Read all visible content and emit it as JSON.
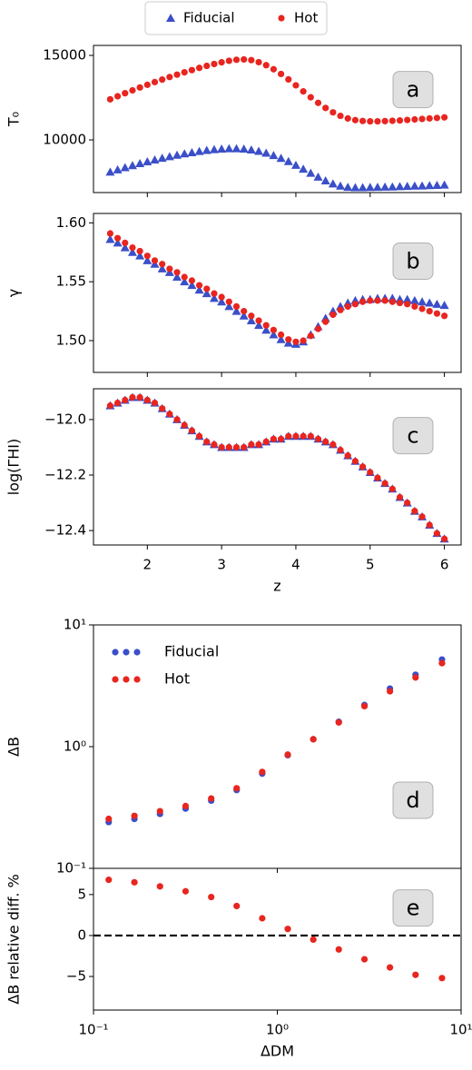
{
  "chart_data": [
    {
      "type": "scatter",
      "ylabel": "T₀",
      "annotation": "a",
      "legend": "upper center outside",
      "sharex": true,
      "x": [
        1.5,
        1.6,
        1.7,
        1.8,
        1.9,
        2.0,
        2.1,
        2.2,
        2.3,
        2.4,
        2.5,
        2.6,
        2.7,
        2.8,
        2.9,
        3.0,
        3.1,
        3.2,
        3.3,
        3.4,
        3.5,
        3.6,
        3.7,
        3.8,
        3.9,
        4.0,
        4.1,
        4.2,
        4.3,
        4.4,
        4.5,
        4.6,
        4.7,
        4.8,
        4.9,
        5.0,
        5.1,
        5.2,
        5.3,
        5.4,
        5.5,
        5.6,
        5.7,
        5.8,
        5.9,
        6.0
      ],
      "xlim": [
        1.275,
        6.225
      ],
      "ylim": [
        6882,
        15591
      ],
      "yticks": [
        10000,
        15000
      ],
      "series": [
        {
          "name": "Fiducial",
          "color": "#3b4fc8",
          "marker": "triangle",
          "values": [
            8100,
            8230,
            8360,
            8480,
            8600,
            8710,
            8820,
            8920,
            9010,
            9100,
            9180,
            9250,
            9320,
            9380,
            9430,
            9460,
            9480,
            9480,
            9460,
            9410,
            9330,
            9220,
            9080,
            8910,
            8720,
            8500,
            8270,
            8030,
            7800,
            7580,
            7400,
            7270,
            7200,
            7180,
            7180,
            7190,
            7200,
            7210,
            7220,
            7240,
            7250,
            7270,
            7280,
            7300,
            7310,
            7330
          ]
        },
        {
          "name": "Hot",
          "color": "#e8251f",
          "marker": "circle",
          "values": [
            12400,
            12580,
            12760,
            12930,
            13100,
            13260,
            13420,
            13570,
            13720,
            13860,
            14000,
            14130,
            14260,
            14380,
            14490,
            14590,
            14680,
            14740,
            14760,
            14720,
            14600,
            14420,
            14180,
            13900,
            13580,
            13230,
            12870,
            12520,
            12190,
            11890,
            11630,
            11420,
            11270,
            11170,
            11120,
            11100,
            11100,
            11110,
            11130,
            11150,
            11180,
            11210,
            11240,
            11270,
            11300,
            11330
          ]
        }
      ]
    },
    {
      "type": "scatter",
      "ylabel": "γ",
      "annotation": "b",
      "sharex": true,
      "x": [
        1.5,
        1.6,
        1.7,
        1.8,
        1.9,
        2.0,
        2.1,
        2.2,
        2.3,
        2.4,
        2.5,
        2.6,
        2.7,
        2.8,
        2.9,
        3.0,
        3.1,
        3.2,
        3.3,
        3.4,
        3.5,
        3.6,
        3.7,
        3.8,
        3.9,
        4.0,
        4.1,
        4.2,
        4.3,
        4.4,
        4.5,
        4.6,
        4.7,
        4.8,
        4.9,
        5.0,
        5.1,
        5.2,
        5.3,
        5.4,
        5.5,
        5.6,
        5.7,
        5.8,
        5.9,
        6.0
      ],
      "xlim": [
        1.275,
        6.225
      ],
      "ylim": [
        1.473,
        1.608
      ],
      "yticks": [
        {
          "value": 1.5,
          "label": "1.50"
        },
        {
          "value": 1.55,
          "label": "1.55"
        },
        {
          "value": 1.6,
          "label": "1.60"
        }
      ],
      "series": [
        {
          "color": "#3b4fc8",
          "marker": "triangle",
          "values": [
            1.586,
            1.583,
            1.579,
            1.575,
            1.572,
            1.568,
            1.565,
            1.561,
            1.558,
            1.554,
            1.55,
            1.547,
            1.543,
            1.54,
            1.536,
            1.533,
            1.529,
            1.525,
            1.521,
            1.517,
            1.513,
            1.509,
            1.505,
            1.501,
            1.498,
            1.497,
            1.499,
            1.505,
            1.512,
            1.519,
            1.525,
            1.529,
            1.532,
            1.534,
            1.535,
            1.535,
            1.536,
            1.536,
            1.536,
            1.535,
            1.535,
            1.534,
            1.533,
            1.532,
            1.531,
            1.53
          ]
        },
        {
          "color": "#e8251f",
          "marker": "circle",
          "values": [
            1.591,
            1.587,
            1.583,
            1.579,
            1.576,
            1.572,
            1.568,
            1.565,
            1.561,
            1.558,
            1.554,
            1.551,
            1.547,
            1.544,
            1.54,
            1.537,
            1.533,
            1.529,
            1.525,
            1.521,
            1.517,
            1.513,
            1.509,
            1.505,
            1.501,
            1.499,
            1.5,
            1.504,
            1.51,
            1.516,
            1.522,
            1.526,
            1.529,
            1.531,
            1.533,
            1.534,
            1.534,
            1.534,
            1.533,
            1.532,
            1.531,
            1.529,
            1.527,
            1.525,
            1.523,
            1.521
          ]
        }
      ]
    },
    {
      "type": "scatter",
      "ylabel": "log(ΓHI)",
      "xlabel": "z",
      "annotation": "c",
      "x": [
        1.5,
        1.6,
        1.7,
        1.8,
        1.9,
        2.0,
        2.1,
        2.2,
        2.3,
        2.4,
        2.5,
        2.6,
        2.7,
        2.8,
        2.9,
        3.0,
        3.1,
        3.2,
        3.3,
        3.4,
        3.5,
        3.6,
        3.7,
        3.8,
        3.9,
        4.0,
        4.1,
        4.2,
        4.3,
        4.4,
        4.5,
        4.6,
        4.7,
        4.8,
        4.9,
        5.0,
        5.1,
        5.2,
        5.3,
        5.4,
        5.5,
        5.6,
        5.7,
        5.8,
        5.9,
        6.0
      ],
      "xlim": [
        1.275,
        6.225
      ],
      "xticks": [
        2,
        3,
        4,
        5,
        6
      ],
      "ylim": [
        -12.452,
        -11.889
      ],
      "yticks": [
        {
          "value": -12.4,
          "label": "−12.4"
        },
        {
          "value": -12.2,
          "label": "−12.2"
        },
        {
          "value": -12.0,
          "label": "−12.0"
        }
      ],
      "series": [
        {
          "color": "#3b4fc8",
          "marker": "triangle",
          "values": [
            -11.95,
            -11.94,
            -11.93,
            -11.92,
            -11.92,
            -11.93,
            -11.94,
            -11.96,
            -11.98,
            -12.0,
            -12.02,
            -12.04,
            -12.06,
            -12.08,
            -12.09,
            -12.1,
            -12.1,
            -12.1,
            -12.1,
            -12.09,
            -12.09,
            -12.08,
            -12.07,
            -12.07,
            -12.06,
            -12.06,
            -12.06,
            -12.06,
            -12.07,
            -12.08,
            -12.09,
            -12.11,
            -12.13,
            -12.15,
            -12.17,
            -12.19,
            -12.21,
            -12.23,
            -12.25,
            -12.28,
            -12.3,
            -12.33,
            -12.35,
            -12.38,
            -12.41,
            -12.43
          ]
        },
        {
          "color": "#e8251f",
          "marker": "circle",
          "values": [
            -11.95,
            -11.94,
            -11.93,
            -11.92,
            -11.92,
            -11.93,
            -11.94,
            -11.96,
            -11.98,
            -12.0,
            -12.02,
            -12.04,
            -12.06,
            -12.08,
            -12.09,
            -12.1,
            -12.1,
            -12.1,
            -12.1,
            -12.09,
            -12.09,
            -12.08,
            -12.07,
            -12.07,
            -12.06,
            -12.06,
            -12.06,
            -12.06,
            -12.07,
            -12.08,
            -12.09,
            -12.11,
            -12.13,
            -12.15,
            -12.17,
            -12.19,
            -12.21,
            -12.23,
            -12.25,
            -12.28,
            -12.3,
            -12.33,
            -12.35,
            -12.38,
            -12.41,
            -12.43
          ]
        }
      ]
    },
    {
      "type": "scatter",
      "ylabel": "ΔB",
      "annotation": "d",
      "legend": "upper left",
      "xscale": "log",
      "yscale": "log",
      "sharex": true,
      "x": [
        0.121,
        0.167,
        0.23,
        0.317,
        0.437,
        0.601,
        0.828,
        1.14,
        1.57,
        2.16,
        2.98,
        4.1,
        5.65,
        7.87
      ],
      "xlim": [
        0.1,
        10
      ],
      "ylim": [
        0.1,
        10
      ],
      "yticks": [
        {
          "value": 0.1,
          "label": "10⁻¹"
        },
        {
          "value": 1,
          "label": "10⁰"
        },
        {
          "value": 10,
          "label": "10¹"
        }
      ],
      "series": [
        {
          "name": "Fiducial",
          "color": "#3b4fc8",
          "marker": "circle",
          "values": [
            0.24,
            0.255,
            0.28,
            0.31,
            0.36,
            0.44,
            0.6,
            0.85,
            1.15,
            1.6,
            2.2,
            3.0,
            3.9,
            5.2
          ]
        },
        {
          "name": "Hot",
          "color": "#e8251f",
          "marker": "circle",
          "values": [
            0.255,
            0.27,
            0.295,
            0.325,
            0.375,
            0.455,
            0.62,
            0.86,
            1.15,
            1.58,
            2.15,
            2.85,
            3.7,
            4.85
          ]
        }
      ]
    },
    {
      "type": "scatter",
      "ylabel": "ΔB relative diff. %",
      "xlabel": "ΔDM",
      "annotation": "e",
      "xscale": "log",
      "hline": 0,
      "x": [
        0.121,
        0.167,
        0.23,
        0.317,
        0.437,
        0.601,
        0.828,
        1.14,
        1.57,
        2.16,
        2.98,
        4.1,
        5.65,
        7.87
      ],
      "xlim": [
        0.1,
        10
      ],
      "xticks": [
        {
          "value": 0.1,
          "label": "10⁻¹"
        },
        {
          "value": 1,
          "label": "10⁰"
        },
        {
          "value": 10,
          "label": "10¹"
        }
      ],
      "ylim": [
        -9.1,
        8.2
      ],
      "yticks": [
        {
          "value": -5,
          "label": "−5"
        },
        0,
        5
      ],
      "series": [
        {
          "color": "#e8251f",
          "marker": "circle",
          "values": [
            6.8,
            6.5,
            6.0,
            5.4,
            4.7,
            3.6,
            2.1,
            0.8,
            -0.5,
            -1.7,
            -2.9,
            -3.9,
            -4.8,
            -5.2
          ]
        }
      ]
    }
  ]
}
